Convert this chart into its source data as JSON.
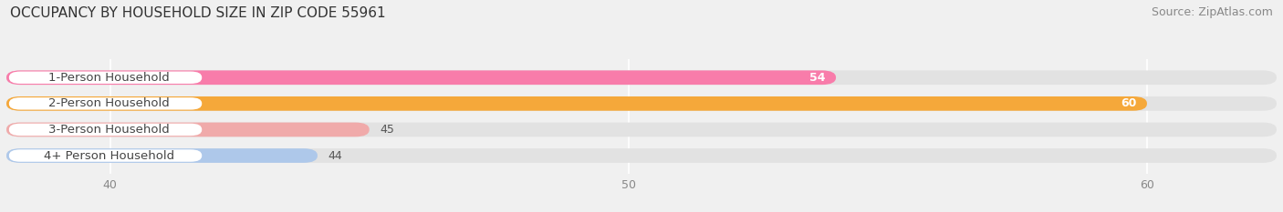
{
  "title": "OCCUPANCY BY HOUSEHOLD SIZE IN ZIP CODE 55961",
  "source": "Source: ZipAtlas.com",
  "categories": [
    "1-Person Household",
    "2-Person Household",
    "3-Person Household",
    "4+ Person Household"
  ],
  "values": [
    54,
    60,
    45,
    44
  ],
  "bar_colors": [
    "#f87caa",
    "#f5a83a",
    "#f0aaaa",
    "#aec8ea"
  ],
  "label_colors": [
    "white",
    "white",
    "black",
    "black"
  ],
  "xlim": [
    38.0,
    62.5
  ],
  "xticks": [
    40,
    50,
    60
  ],
  "background_color": "#f0f0f0",
  "bar_background_color": "#e2e2e2",
  "label_box_color": "#ffffff",
  "title_fontsize": 11,
  "source_fontsize": 9,
  "label_fontsize": 9.5,
  "value_fontsize": 9,
  "tick_fontsize": 9
}
